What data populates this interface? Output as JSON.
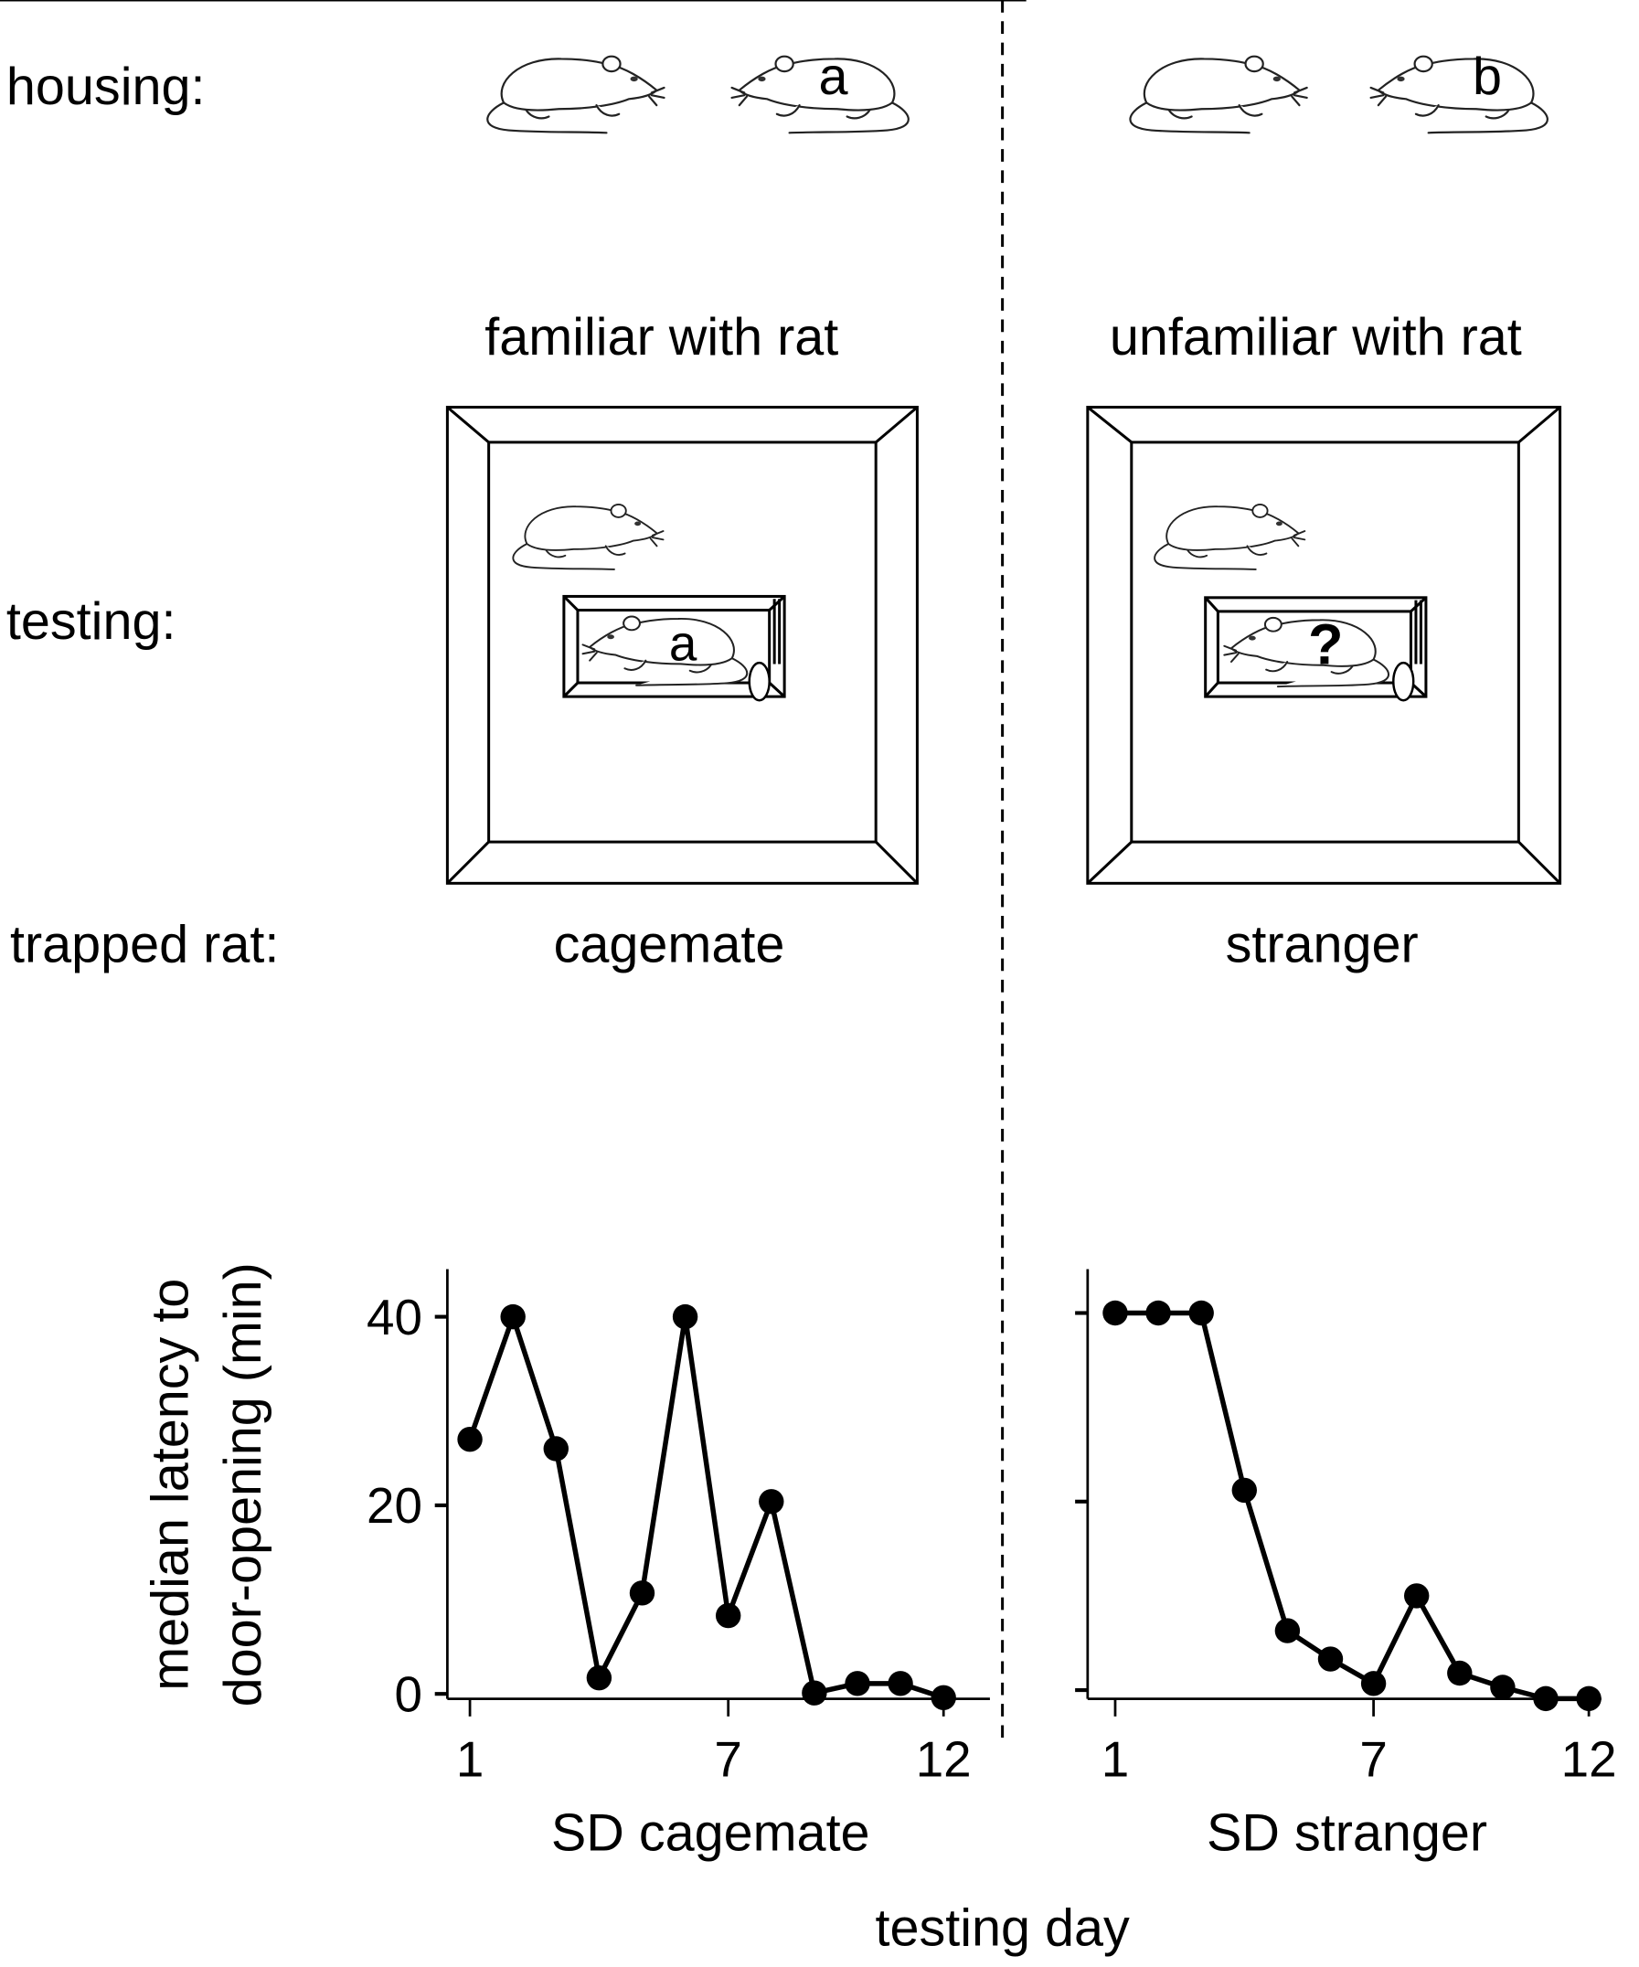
{
  "rows": {
    "housing": "housing:",
    "testing": "testing:",
    "trapped_rat": "trapped rat:"
  },
  "conditions": [
    {
      "familiarity": "familiar with rat",
      "rat_letter": "a",
      "trapped_label": "cagemate",
      "trapped_mark": "a"
    },
    {
      "familiarity": "unfamiliar with rat",
      "rat_letter": "b",
      "trapped_label": "stranger",
      "trapped_mark": "?"
    }
  ],
  "chart_data": [
    {
      "type": "line",
      "title": "SD cagemate",
      "xlabel": "SD cagemate",
      "ylabel": "median latency to door-opening (min)",
      "x": [
        1,
        2,
        3,
        4,
        5,
        6,
        7,
        8,
        9,
        10,
        11,
        12
      ],
      "values": [
        27,
        40,
        26,
        1.7,
        10.7,
        40,
        8.3,
        20.4,
        0.1,
        1.1,
        1.1,
        -0.4
      ],
      "ylim": [
        0,
        40
      ],
      "yticks": [
        "0",
        "20",
        "40"
      ],
      "ytick_values": [
        0,
        20,
        40
      ],
      "xticks": [
        "1",
        "7",
        "12"
      ],
      "xtick_values": [
        1,
        7,
        12
      ],
      "grid": false
    },
    {
      "type": "line",
      "title": "SD stranger",
      "xlabel": "SD stranger",
      "ylabel": "",
      "x": [
        1,
        2,
        3,
        4,
        5,
        6,
        7,
        8,
        9,
        10,
        11,
        12
      ],
      "values": [
        40,
        40,
        40,
        21.2,
        6.3,
        3.3,
        0.7,
        10,
        1.8,
        0.3,
        -0.9,
        -0.9
      ],
      "ylim": [
        0,
        40
      ],
      "yticks": [],
      "ytick_values": [
        0,
        20,
        40
      ],
      "xticks": [
        "1",
        "7",
        "12"
      ],
      "xtick_values": [
        1,
        7,
        12
      ],
      "grid": false
    }
  ],
  "ylabel_lines": [
    "median latency to",
    "door-opening (min)"
  ],
  "shared_xlabel": "testing day"
}
